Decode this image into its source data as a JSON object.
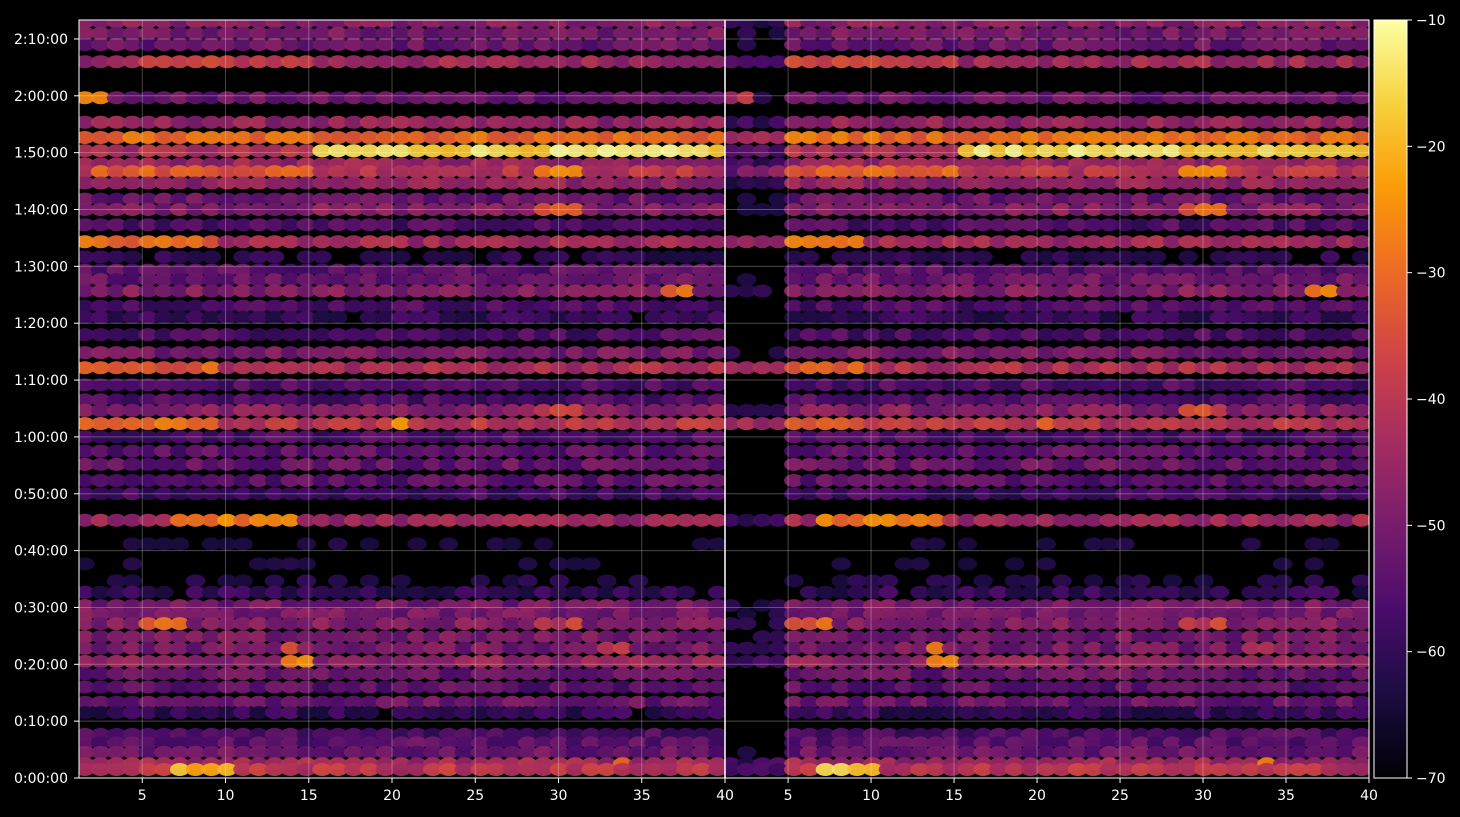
{
  "chart_data": {
    "type": "heatmap",
    "title": "",
    "xlabel": "",
    "ylabel": "",
    "background": "#000000",
    "grid": true,
    "colormap": "inferno",
    "colormap_stops": [
      "#000004",
      "#1b0c41",
      "#4a0c6b",
      "#781c6d",
      "#a52c60",
      "#cf4446",
      "#ed6925",
      "#fb9b06",
      "#f7d13d",
      "#fcffa4"
    ],
    "xlim": [
      1.2,
      40
    ],
    "ylim": [
      0,
      8000
    ],
    "panels": 2,
    "x_ticks": [
      "5",
      "10",
      "15",
      "20",
      "25",
      "30",
      "35",
      "40"
    ],
    "x_tick_values": [
      5,
      10,
      15,
      20,
      25,
      30,
      35,
      40
    ],
    "y_ticks": [
      "0:00:00",
      "0:10:00",
      "0:20:00",
      "0:30:00",
      "0:40:00",
      "0:50:00",
      "1:00:00",
      "1:10:00",
      "1:20:00",
      "1:30:00",
      "1:40:00",
      "1:50:00",
      "2:00:00",
      "2:10:00"
    ],
    "y_tick_values": [
      0,
      600,
      1200,
      1800,
      2400,
      3000,
      3600,
      4200,
      4800,
      5400,
      6000,
      6600,
      7200,
      7800
    ],
    "colorbar": {
      "range": [
        -70,
        -10
      ],
      "ticks": [
        "−10",
        "−20",
        "−30",
        "−40",
        "−50",
        "−60",
        "−70"
      ],
      "tick_values": [
        -10,
        -20,
        -30,
        -40,
        -50,
        -60,
        -70
      ],
      "label": ""
    },
    "bands": [
      {
        "t": 7980,
        "level": -48
      },
      {
        "t": 7860,
        "level": -50
      },
      {
        "t": 7740,
        "level": -52
      },
      {
        "t": 7560,
        "level": -44,
        "hot": [
          [
            5,
            15,
            -38
          ]
        ]
      },
      {
        "t": 7180,
        "level": -52,
        "hot": [
          [
            1.5,
            2.5,
            -28
          ]
        ]
      },
      {
        "t": 6920,
        "level": -46
      },
      {
        "t": 6760,
        "level": -38,
        "hot": [
          [
            1.5,
            40,
            -30
          ]
        ]
      },
      {
        "t": 6620,
        "level": -42,
        "hot": [
          [
            15,
            40,
            -15
          ]
        ]
      },
      {
        "t": 6480,
        "level": -45
      },
      {
        "t": 6400,
        "level": -40,
        "hot": [
          [
            2,
            15,
            -32
          ],
          [
            29,
            31,
            -28
          ]
        ]
      },
      {
        "t": 6280,
        "level": -46
      },
      {
        "t": 6110,
        "level": -52
      },
      {
        "t": 6000,
        "level": -48,
        "hot": [
          [
            29,
            31,
            -32
          ]
        ]
      },
      {
        "t": 5840,
        "level": -56
      },
      {
        "t": 5660,
        "level": -44,
        "hot": [
          [
            1.5,
            10,
            -30
          ]
        ]
      },
      {
        "t": 5500,
        "level": -62
      },
      {
        "t": 5360,
        "level": -54
      },
      {
        "t": 5260,
        "level": -52
      },
      {
        "t": 5140,
        "level": -48,
        "hot": [
          [
            36,
            38,
            -28
          ]
        ]
      },
      {
        "t": 4980,
        "level": -56
      },
      {
        "t": 4860,
        "level": -60
      },
      {
        "t": 4680,
        "level": -56
      },
      {
        "t": 4490,
        "level": -50
      },
      {
        "t": 4330,
        "level": -42,
        "hot": [
          [
            1.5,
            10,
            -32
          ]
        ]
      },
      {
        "t": 4150,
        "level": -56
      },
      {
        "t": 3990,
        "level": -56
      },
      {
        "t": 3880,
        "level": -48,
        "hot": [
          [
            29,
            31,
            -36
          ]
        ]
      },
      {
        "t": 3740,
        "level": -40,
        "hot": [
          [
            1.5,
            10,
            -30
          ],
          [
            20,
            21,
            -26
          ]
        ]
      },
      {
        "t": 3600,
        "level": -56
      },
      {
        "t": 3450,
        "level": -54
      },
      {
        "t": 3310,
        "level": -52
      },
      {
        "t": 3140,
        "level": -54
      },
      {
        "t": 3000,
        "level": -58
      },
      {
        "t": 2720,
        "level": -44,
        "hot": [
          [
            7,
            14,
            -28
          ]
        ]
      },
      {
        "t": 2470,
        "level": -66
      },
      {
        "t": 2260,
        "level": -66
      },
      {
        "t": 2080,
        "level": -64
      },
      {
        "t": 1960,
        "level": -60
      },
      {
        "t": 1820,
        "level": -50
      },
      {
        "t": 1730,
        "level": -50
      },
      {
        "t": 1630,
        "level": -48,
        "hot": [
          [
            5,
            8,
            -32
          ],
          [
            29,
            31,
            -38
          ]
        ]
      },
      {
        "t": 1490,
        "level": -50
      },
      {
        "t": 1370,
        "level": -50,
        "hot": [
          [
            13,
            14,
            -30
          ],
          [
            32,
            34,
            -38
          ]
        ]
      },
      {
        "t": 1230,
        "level": -46,
        "hot": [
          [
            13,
            15,
            -24
          ]
        ]
      },
      {
        "t": 1100,
        "level": -52
      },
      {
        "t": 960,
        "level": -54
      },
      {
        "t": 800,
        "level": -52
      },
      {
        "t": 690,
        "level": -60
      },
      {
        "t": 460,
        "level": -56
      },
      {
        "t": 370,
        "level": -54
      },
      {
        "t": 270,
        "level": -52
      },
      {
        "t": 150,
        "level": -44,
        "hot": [
          [
            33,
            34,
            -26
          ]
        ]
      },
      {
        "t": 90,
        "level": -40,
        "hot": [
          [
            7,
            11,
            -18
          ]
        ]
      }
    ]
  }
}
